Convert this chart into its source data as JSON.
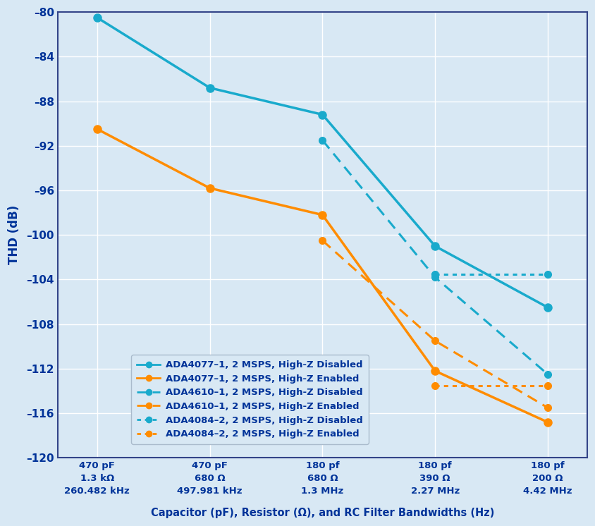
{
  "x_positions": [
    0,
    1,
    2,
    3,
    4
  ],
  "x_tick_labels": [
    "470 pF\n1.3 kΩ\n260.482 kHz",
    "470 pF\n680 Ω\n497.981 kHz",
    "180 pf\n680 Ω\n1.3 MHz",
    "180 pf\n390 Ω\n2.27 MHz",
    "180 pf\n200 Ω\n4.42 MHz"
  ],
  "series": [
    {
      "label": "ADA4077–1, 2 MSPS, High-Z Disabled",
      "color": "#19AACC",
      "linestyle": "solid",
      "marker": "o",
      "linewidth": 2.5,
      "markersize": 8,
      "x": [
        0,
        1,
        2,
        3,
        4
      ],
      "y": [
        -80.5,
        -86.8,
        -89.2,
        -101.0,
        -106.5
      ]
    },
    {
      "label": "ADA4077–1, 2 MSPS, High-Z Enabled",
      "color": "#FF8C00",
      "linestyle": "solid",
      "marker": "o",
      "linewidth": 2.5,
      "markersize": 8,
      "x": [
        0,
        1,
        2,
        3,
        4
      ],
      "y": [
        -90.5,
        -95.8,
        -98.2,
        -112.2,
        -116.8
      ]
    },
    {
      "label": "ADA4610–1, 2 MSPS, High-Z Disabled",
      "color": "#19AACC",
      "linestyle": "dashed",
      "marker": "o",
      "linewidth": 2.2,
      "markersize": 7,
      "x": [
        2,
        3,
        4
      ],
      "y": [
        -91.5,
        -103.8,
        -112.5
      ]
    },
    {
      "label": "ADA4610–1, 2 MSPS, High-Z Enabled",
      "color": "#FF8C00",
      "linestyle": "dashed",
      "marker": "o",
      "linewidth": 2.2,
      "markersize": 7,
      "x": [
        2,
        3,
        4
      ],
      "y": [
        -100.5,
        -109.5,
        -115.5
      ]
    },
    {
      "label": "ADA4084–2, 2 MSPS, High-Z Disabled",
      "color": "#19AACC",
      "linestyle": "dotted",
      "marker": "o",
      "linewidth": 2.2,
      "markersize": 7,
      "x": [
        3,
        4
      ],
      "y": [
        -103.5,
        -103.5
      ]
    },
    {
      "label": "ADA4084–2, 2 MSPS, High-Z Enabled",
      "color": "#FF8C00",
      "linestyle": "dotted",
      "marker": "o",
      "linewidth": 2.2,
      "markersize": 7,
      "x": [
        3,
        4
      ],
      "y": [
        -113.5,
        -113.5
      ]
    }
  ],
  "ylabel": "THD (dB)",
  "xlabel": "Capacitor (pF), Resistor (Ω), and RC Filter Bandwidths (Hz)",
  "ylim": [
    -120,
    -80
  ],
  "yticks": [
    -80,
    -84,
    -88,
    -92,
    -96,
    -100,
    -104,
    -108,
    -112,
    -116,
    -120
  ],
  "ytick_labels": [
    "–80",
    "–84",
    "–88",
    "–92",
    "–96",
    "–100",
    "–104",
    "–108",
    "–112",
    "–116",
    "–120"
  ],
  "bg_color": "#D8E8F4",
  "plot_bg_color": "#D8E8F4",
  "grid_color": "#FFFFFF",
  "label_color": "#003399",
  "spine_color": "#334488"
}
